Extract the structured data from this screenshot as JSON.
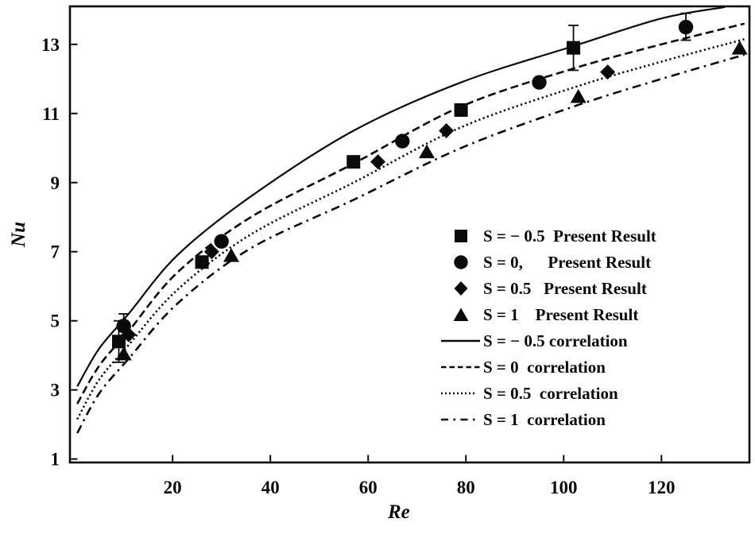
{
  "figure": {
    "background": "#ffffff",
    "ink_color": "#0a0a0a"
  },
  "chart_data": {
    "type": "scatter",
    "title": "",
    "xlabel": "Re",
    "ylabel": "Nu",
    "grid": false,
    "x_axis": {
      "ticks": [
        20,
        40,
        60,
        80,
        100,
        120
      ],
      "range": [
        -1,
        138
      ]
    },
    "y_axis": {
      "ticks": [
        1,
        3,
        5,
        7,
        9,
        11,
        13
      ],
      "range": [
        0.9,
        14.1
      ]
    },
    "marker_color": "#0a0a0a",
    "series": [
      {
        "name": "S = − 0.5 Present Result",
        "marker": "square",
        "points": [
          [
            9,
            4.4
          ],
          [
            26,
            6.7
          ],
          [
            57,
            9.6
          ],
          [
            79,
            11.1
          ],
          [
            102,
            12.9
          ]
        ],
        "error_bars": [
          {
            "x": 9,
            "y": 4.4,
            "plus": 0.6,
            "minus": 0.6
          },
          {
            "x": 102,
            "y": 12.9,
            "plus": 0.65,
            "minus": 0.65
          }
        ]
      },
      {
        "name": "S = 0, Present Result",
        "marker": "circle",
        "points": [
          [
            10,
            4.85
          ],
          [
            30,
            7.3
          ],
          [
            67,
            10.2
          ],
          [
            95,
            11.9
          ],
          [
            125,
            13.5
          ]
        ],
        "error_bars": [
          {
            "x": 10,
            "y": 4.85,
            "plus": 0.35,
            "minus": 0.35
          },
          {
            "x": 125,
            "y": 13.5,
            "plus": 0.4,
            "minus": 0.38
          }
        ]
      },
      {
        "name": "S = 0.5 Present Result",
        "marker": "diamond",
        "points": [
          [
            11,
            4.6
          ],
          [
            28,
            7.0
          ],
          [
            62,
            9.6
          ],
          [
            76,
            10.5
          ],
          [
            109,
            12.2
          ]
        ],
        "error_bars": []
      },
      {
        "name": "S = 1 Present Result",
        "marker": "triangle",
        "points": [
          [
            10,
            4.05
          ],
          [
            32,
            6.9
          ],
          [
            72,
            9.9
          ],
          [
            103,
            11.5
          ],
          [
            136,
            12.9
          ]
        ],
        "error_bars": []
      }
    ],
    "curves": [
      {
        "name": "S = − 0.5 correlation",
        "style": "solid",
        "points": [
          [
            0.5,
            3.1
          ],
          [
            5,
            4.2
          ],
          [
            11,
            5.2
          ],
          [
            21,
            6.9
          ],
          [
            36,
            8.6
          ],
          [
            57,
            10.5
          ],
          [
            79,
            11.9
          ],
          [
            102,
            12.95
          ],
          [
            120,
            13.75
          ],
          [
            133,
            14.08
          ]
        ]
      },
      {
        "name": "S = 0 correlation",
        "style": "dashed",
        "points": [
          [
            0.5,
            2.6
          ],
          [
            5,
            3.7
          ],
          [
            11,
            4.7
          ],
          [
            21,
            6.4
          ],
          [
            36,
            8.0
          ],
          [
            57,
            9.55
          ],
          [
            79,
            11.2
          ],
          [
            102,
            12.3
          ],
          [
            120,
            13.0
          ],
          [
            137,
            13.6
          ]
        ]
      },
      {
        "name": "S = 0.5 correlation",
        "style": "dotted",
        "points": [
          [
            0.5,
            2.15
          ],
          [
            5,
            3.3
          ],
          [
            11,
            4.3
          ],
          [
            21,
            5.9
          ],
          [
            36,
            7.5
          ],
          [
            57,
            9.0
          ],
          [
            79,
            10.6
          ],
          [
            102,
            11.75
          ],
          [
            120,
            12.5
          ],
          [
            137,
            13.15
          ]
        ]
      },
      {
        "name": "S = 1 correlation",
        "style": "dashdot",
        "points": [
          [
            0.5,
            1.75
          ],
          [
            5,
            2.9
          ],
          [
            11,
            3.9
          ],
          [
            21,
            5.5
          ],
          [
            36,
            7.1
          ],
          [
            57,
            8.5
          ],
          [
            79,
            10.0
          ],
          [
            102,
            11.2
          ],
          [
            120,
            12.0
          ],
          [
            137,
            12.7
          ]
        ]
      }
    ],
    "legend": {
      "position": "inside-right",
      "entries": [
        {
          "glyph": "square",
          "label": "S = − 0.5  Present Result"
        },
        {
          "glyph": "circle",
          "label": "S = 0,      Present Result"
        },
        {
          "glyph": "diamond",
          "label": "S = 0.5   Present Result"
        },
        {
          "glyph": "triangle",
          "label": "S = 1    Present Result"
        },
        {
          "glyph": "line-solid",
          "label": "S = − 0.5 correlation"
        },
        {
          "glyph": "line-dashed",
          "label": "S = 0  correlation"
        },
        {
          "glyph": "line-dotted",
          "label": "S = 0.5  correlation"
        },
        {
          "glyph": "line-dashdot",
          "label": "S = 1  correlation"
        }
      ]
    }
  }
}
